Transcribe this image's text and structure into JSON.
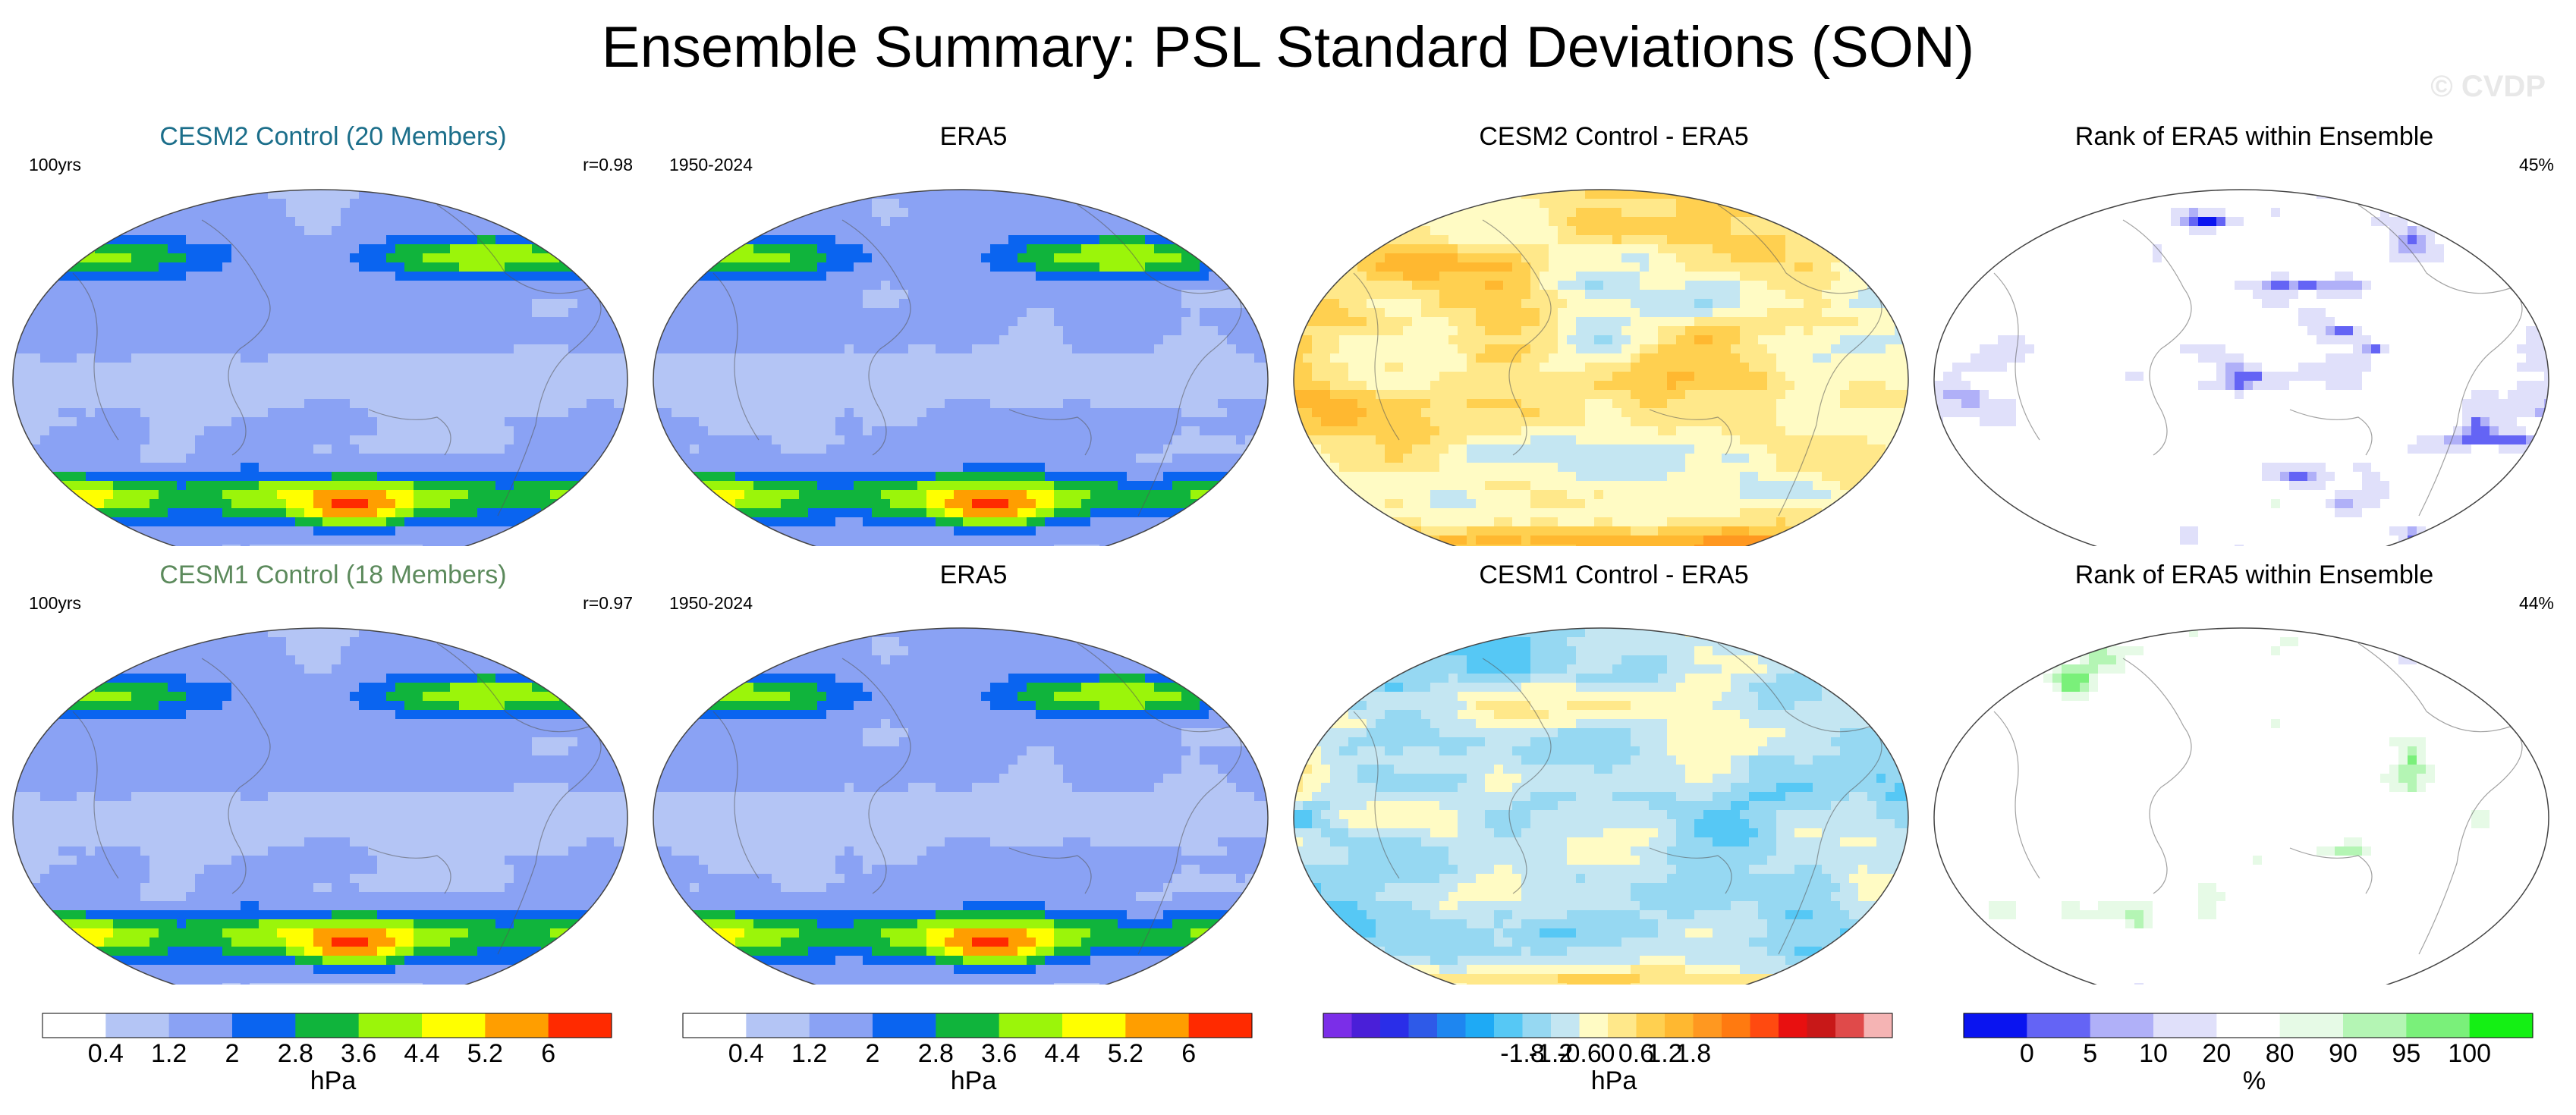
{
  "title": "Ensemble Summary: PSL Standard Deviations (SON)",
  "watermark": "© CVDP",
  "rows": [
    {
      "panels": [
        {
          "title": "CESM2 Control (20 Members)",
          "title_color": "#1b6e8a",
          "left": "100yrs",
          "right": "r=0.98",
          "field": "std"
        },
        {
          "title": "ERA5",
          "title_color": "#000000",
          "left": "1950-2024",
          "right": "",
          "field": "std_obs"
        },
        {
          "title": "CESM2 Control - ERA5",
          "title_color": "#000000",
          "left": "",
          "right": "",
          "field": "diff_warm"
        },
        {
          "title": "Rank of ERA5 within Ensemble",
          "title_color": "#000000",
          "left": "",
          "right": "45%",
          "field": "rank_a"
        }
      ]
    },
    {
      "panels": [
        {
          "title": "CESM1 Control (18 Members)",
          "title_color": "#5c8a5c",
          "left": "100yrs",
          "right": "r=0.97",
          "field": "std"
        },
        {
          "title": "ERA5",
          "title_color": "#000000",
          "left": "1950-2024",
          "right": "",
          "field": "std_obs"
        },
        {
          "title": "CESM1 Control - ERA5",
          "title_color": "#000000",
          "left": "",
          "right": "",
          "field": "diff_cool"
        },
        {
          "title": "Rank of ERA5 within Ensemble",
          "title_color": "#000000",
          "left": "",
          "right": "44%",
          "field": "rank_b"
        }
      ]
    }
  ],
  "colorbars": [
    {
      "name": "std",
      "colors": [
        "#ffffff",
        "#b4c5f5",
        "#8aa2f4",
        "#0a64f0",
        "#10b43c",
        "#9bf50a",
        "#ffff00",
        "#ff9e00",
        "#ff2a00"
      ],
      "labels": [
        "0.4",
        "1.2",
        "2",
        "2.8",
        "3.6",
        "4.4",
        "5.2",
        "6"
      ],
      "unit": "hPa"
    },
    {
      "name": "std_obs",
      "colors": [
        "#ffffff",
        "#b4c5f5",
        "#8aa2f4",
        "#0a64f0",
        "#10b43c",
        "#9bf50a",
        "#ffff00",
        "#ff9e00",
        "#ff2a00"
      ],
      "labels": [
        "0.4",
        "1.2",
        "2",
        "2.8",
        "3.6",
        "4.4",
        "5.2",
        "6"
      ],
      "unit": "hPa"
    },
    {
      "name": "diff",
      "colors": [
        "#7b2ee8",
        "#4a1fd8",
        "#2a2ee8",
        "#2e5ae8",
        "#1e86f0",
        "#1eaaf5",
        "#56c8f5",
        "#96d8f2",
        "#c4e6f2",
        "#fffbc4",
        "#ffe88a",
        "#ffd050",
        "#ffb830",
        "#ff9820",
        "#ff7a10",
        "#ff4a10",
        "#e81010",
        "#c81818",
        "#e04a4a",
        "#f5b4b4"
      ],
      "labels": [
        "-1.8",
        "-1.2",
        "-0.6",
        "0",
        "0.6",
        "1.2",
        "1.8"
      ],
      "unit": "hPa"
    },
    {
      "name": "rank",
      "colors": [
        "#0a14f0",
        "#6464f5",
        "#b0b0f8",
        "#e0e0fa",
        "#ffffff",
        "#e6fae6",
        "#b4f5b4",
        "#7af07a",
        "#14f014"
      ],
      "labels": [
        "0",
        "5",
        "10",
        "20",
        "80",
        "90",
        "95",
        "100"
      ],
      "unit": "%"
    }
  ],
  "chart_data": [
    {
      "type": "heatmap",
      "title": "CESM2 Control (20 Members)",
      "annotation_left": "100yrs",
      "annotation_right": "r=0.98",
      "unit": "hPa",
      "levels": [
        0.4,
        1.2,
        2,
        2.8,
        3.6,
        4.4,
        5.2,
        6
      ]
    },
    {
      "type": "heatmap",
      "title": "ERA5",
      "annotation_left": "1950-2024",
      "unit": "hPa",
      "levels": [
        0.4,
        1.2,
        2,
        2.8,
        3.6,
        4.4,
        5.2,
        6
      ]
    },
    {
      "type": "heatmap",
      "title": "CESM2 Control - ERA5",
      "unit": "hPa",
      "levels": [
        -1.8,
        -1.2,
        -0.6,
        0,
        0.6,
        1.2,
        1.8
      ]
    },
    {
      "type": "heatmap",
      "title": "Rank of ERA5 within Ensemble",
      "annotation_right": "45%",
      "unit": "%",
      "levels": [
        0,
        5,
        10,
        20,
        80,
        90,
        95,
        100
      ]
    },
    {
      "type": "heatmap",
      "title": "CESM1 Control (18 Members)",
      "annotation_left": "100yrs",
      "annotation_right": "r=0.97",
      "unit": "hPa",
      "levels": [
        0.4,
        1.2,
        2,
        2.8,
        3.6,
        4.4,
        5.2,
        6
      ]
    },
    {
      "type": "heatmap",
      "title": "ERA5",
      "annotation_left": "1950-2024",
      "unit": "hPa",
      "levels": [
        0.4,
        1.2,
        2,
        2.8,
        3.6,
        4.4,
        5.2,
        6
      ]
    },
    {
      "type": "heatmap",
      "title": "CESM1 Control - ERA5",
      "unit": "hPa",
      "levels": [
        -1.8,
        -1.2,
        -0.6,
        0,
        0.6,
        1.2,
        1.8
      ]
    },
    {
      "type": "heatmap",
      "title": "Rank of ERA5 within Ensemble",
      "annotation_right": "44%",
      "unit": "%",
      "levels": [
        0,
        5,
        10,
        20,
        80,
        90,
        95,
        100
      ]
    }
  ]
}
